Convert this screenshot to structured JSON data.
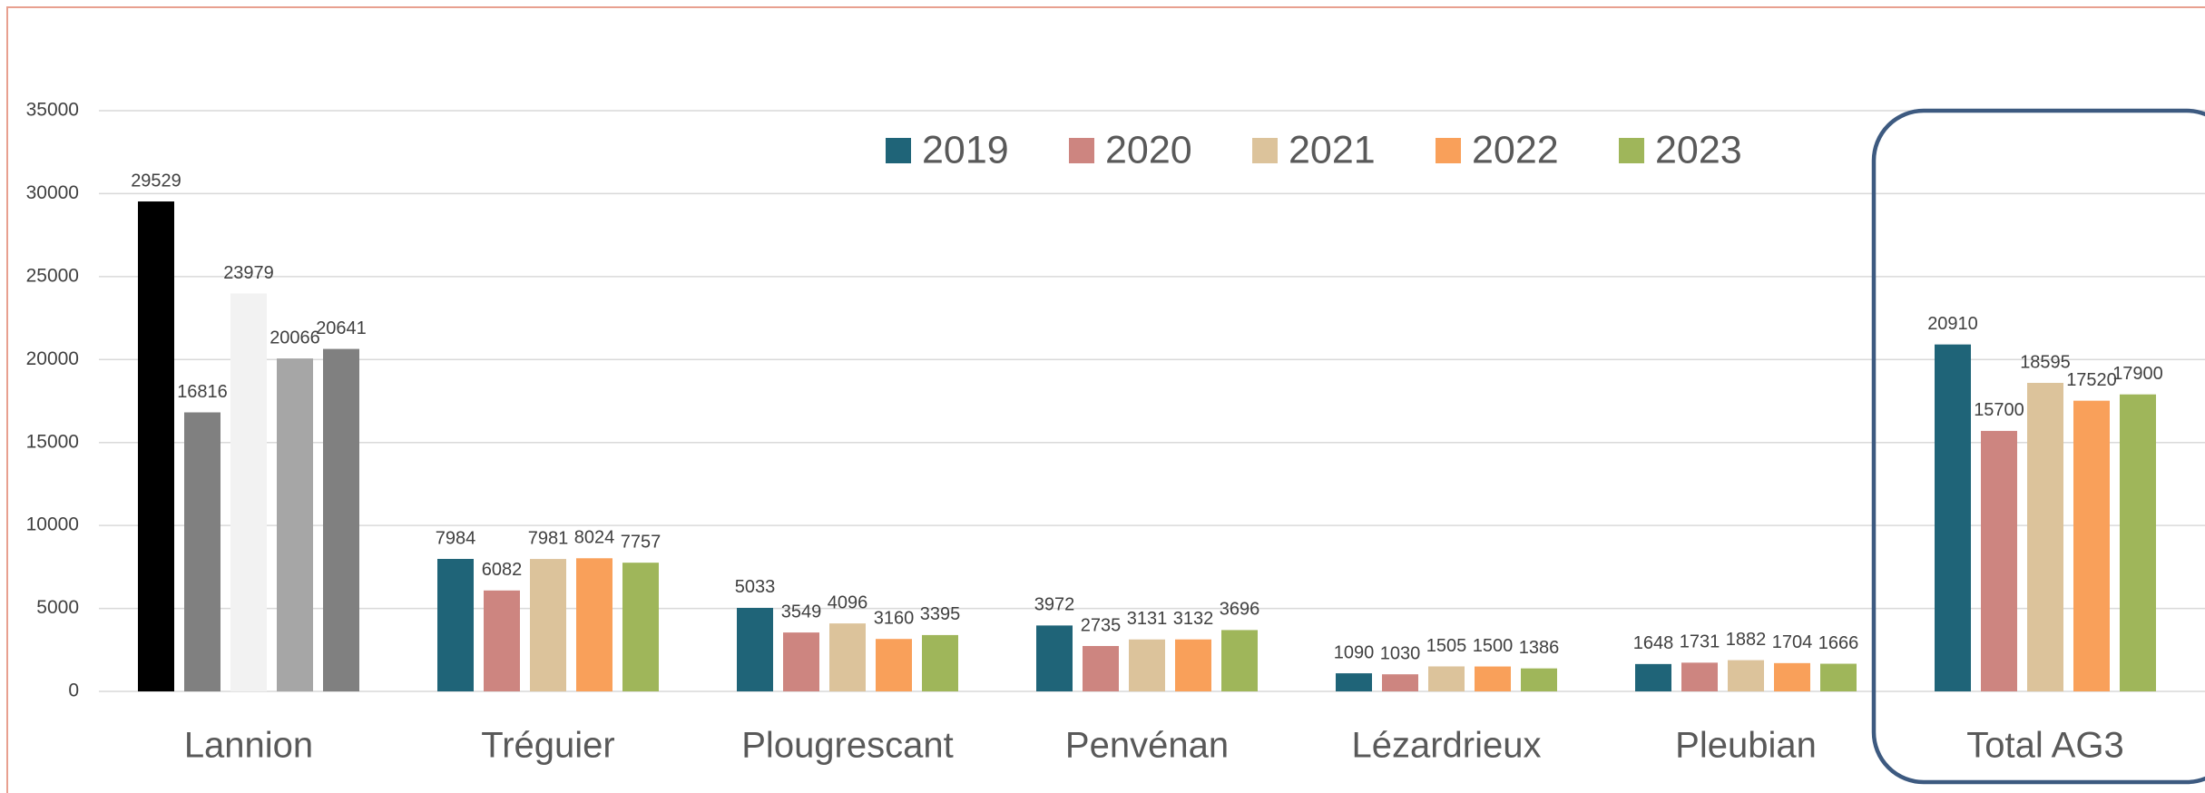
{
  "chart_data": {
    "type": "bar",
    "categories": [
      "Lannion",
      "Tréguier",
      "Plougrescant",
      "Penvénan",
      "Lézardrieux",
      "Pleubian",
      "Total AG3"
    ],
    "series": [
      {
        "name": "2019",
        "color": "#1f6478",
        "values": [
          29529,
          7984,
          5033,
          3972,
          1090,
          1648,
          20910
        ]
      },
      {
        "name": "2020",
        "color": "#cd8580",
        "values": [
          16816,
          6082,
          3549,
          2735,
          1030,
          1731,
          15700
        ]
      },
      {
        "name": "2021",
        "color": "#dcc39b",
        "values": [
          23979,
          7981,
          4096,
          3131,
          1505,
          1882,
          18595
        ]
      },
      {
        "name": "2022",
        "color": "#f9a05a",
        "values": [
          20066,
          8024,
          3160,
          3132,
          1500,
          1704,
          17520
        ]
      },
      {
        "name": "2023",
        "color": "#9fb65a",
        "values": [
          20641,
          7757,
          3395,
          3696,
          1386,
          1666,
          17900
        ]
      }
    ],
    "first_category_colors": [
      "#000000",
      "#808080",
      "#f2f2f2",
      "#a6a6a6",
      "#808080"
    ],
    "highlight_category": 6,
    "ylim": [
      0,
      35000
    ],
    "yticks": [
      0,
      5000,
      10000,
      15000,
      20000,
      25000,
      30000,
      35000
    ],
    "grid": true,
    "legend": "top"
  }
}
